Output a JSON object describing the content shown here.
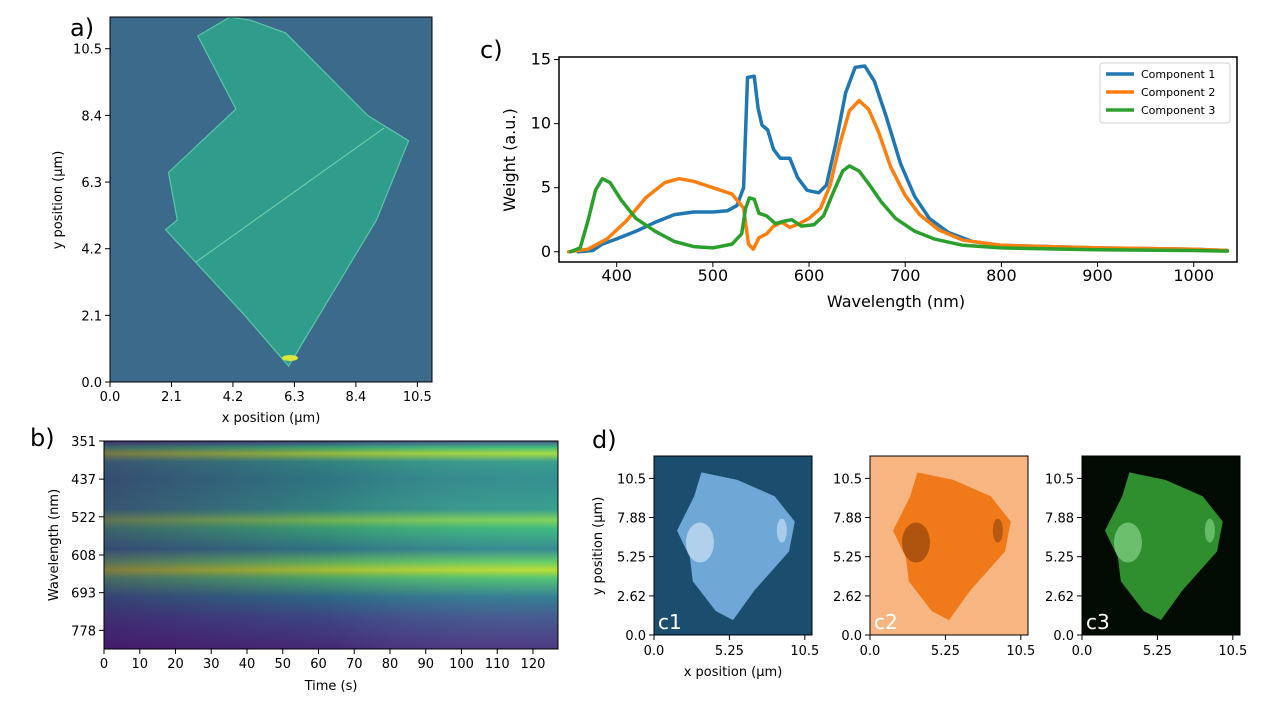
{
  "panels": {
    "a": "a)",
    "b": "b)",
    "c": "c)",
    "d": "d)"
  },
  "chart_data": [
    {
      "type": "heatmap",
      "panel": "a)",
      "xlabel": "x position (µm)",
      "ylabel": "y position (µm)",
      "x_ticks": [
        "0.0",
        "2.1",
        "4.2",
        "6.3",
        "8.4",
        "10.5"
      ],
      "y_ticks": [
        "0.0",
        "2.1",
        "4.2",
        "6.3",
        "8.4",
        "10.5"
      ],
      "xlim": [
        0,
        11
      ],
      "ylim": [
        0,
        11.5
      ],
      "colormap": "viridis",
      "flake_outline": [
        [
          3.0,
          10.9
        ],
        [
          4.1,
          11.5
        ],
        [
          4.8,
          11.4
        ],
        [
          6.0,
          11.0
        ],
        [
          8.8,
          8.4
        ],
        [
          10.2,
          7.6
        ],
        [
          9.1,
          5.1
        ],
        [
          6.1,
          0.5
        ],
        [
          4.6,
          2.1
        ],
        [
          1.9,
          4.8
        ],
        [
          2.3,
          5.1
        ],
        [
          2.0,
          6.6
        ],
        [
          4.3,
          8.6
        ],
        [
          3.0,
          10.9
        ]
      ]
    },
    {
      "type": "heatmap",
      "panel": "b)",
      "xlabel": "Time (s)",
      "ylabel": "Wavelength (nm)",
      "x_ticks": [
        "0",
        "10",
        "20",
        "30",
        "40",
        "50",
        "60",
        "70",
        "80",
        "90",
        "100",
        "110",
        "120"
      ],
      "y_ticks": [
        "351",
        "437",
        "522",
        "608",
        "693",
        "778"
      ],
      "xlim": [
        0,
        127
      ],
      "ylim": [
        351,
        820
      ],
      "colormap": "viridis",
      "bright_bands_nm": [
        385,
        520,
        648
      ]
    },
    {
      "type": "line",
      "panel": "c)",
      "xlabel": "Wavelength (nm)",
      "ylabel": "Weight (a.u.)",
      "xlim": [
        340,
        1045
      ],
      "ylim": [
        -0.8,
        15.2
      ],
      "x_ticks": [
        "400",
        "500",
        "600",
        "700",
        "800",
        "900",
        "1000"
      ],
      "y_ticks": [
        "0",
        "5",
        "10",
        "15"
      ],
      "legend_position": "top-right",
      "series": [
        {
          "name": "Component 1",
          "color": "#1f77b4",
          "points": [
            [
              360,
              0
            ],
            [
              375,
              0.1
            ],
            [
              385,
              0.6
            ],
            [
              400,
              1.0
            ],
            [
              420,
              1.6
            ],
            [
              440,
              2.3
            ],
            [
              460,
              2.9
            ],
            [
              480,
              3.1
            ],
            [
              500,
              3.1
            ],
            [
              515,
              3.2
            ],
            [
              525,
              3.6
            ],
            [
              532,
              5.0
            ],
            [
              536,
              13.6
            ],
            [
              543,
              13.7
            ],
            [
              547,
              11.2
            ],
            [
              551,
              9.9
            ],
            [
              557,
              9.5
            ],
            [
              563,
              8.0
            ],
            [
              570,
              7.3
            ],
            [
              580,
              7.3
            ],
            [
              588,
              5.8
            ],
            [
              598,
              4.8
            ],
            [
              610,
              4.6
            ],
            [
              618,
              5.2
            ],
            [
              628,
              8.5
            ],
            [
              638,
              12.4
            ],
            [
              648,
              14.4
            ],
            [
              658,
              14.5
            ],
            [
              668,
              13.3
            ],
            [
              680,
              10.6
            ],
            [
              695,
              6.9
            ],
            [
              710,
              4.3
            ],
            [
              725,
              2.6
            ],
            [
              745,
              1.5
            ],
            [
              770,
              0.8
            ],
            [
              800,
              0.5
            ],
            [
              900,
              0.3
            ],
            [
              1000,
              0.2
            ],
            [
              1035,
              0.1
            ]
          ]
        },
        {
          "name": "Component 2",
          "color": "#ff7f0e",
          "points": [
            [
              350,
              0
            ],
            [
              370,
              0.2
            ],
            [
              390,
              1.0
            ],
            [
              410,
              2.4
            ],
            [
              430,
              4.2
            ],
            [
              450,
              5.4
            ],
            [
              465,
              5.7
            ],
            [
              480,
              5.5
            ],
            [
              500,
              5.0
            ],
            [
              520,
              4.5
            ],
            [
              532,
              3.4
            ],
            [
              537,
              0.6
            ],
            [
              542,
              0.2
            ],
            [
              548,
              1.1
            ],
            [
              556,
              1.4
            ],
            [
              563,
              2.0
            ],
            [
              572,
              2.3
            ],
            [
              580,
              1.9
            ],
            [
              590,
              2.2
            ],
            [
              600,
              2.6
            ],
            [
              612,
              3.4
            ],
            [
              622,
              5.2
            ],
            [
              632,
              8.4
            ],
            [
              642,
              11.0
            ],
            [
              652,
              11.8
            ],
            [
              662,
              11.1
            ],
            [
              672,
              9.4
            ],
            [
              685,
              6.6
            ],
            [
              700,
              4.4
            ],
            [
              715,
              2.9
            ],
            [
              735,
              1.7
            ],
            [
              760,
              0.9
            ],
            [
              800,
              0.5
            ],
            [
              900,
              0.3
            ],
            [
              1000,
              0.2
            ],
            [
              1035,
              0.1
            ]
          ]
        },
        {
          "name": "Component 3",
          "color": "#2ca02c",
          "points": [
            [
              352,
              0
            ],
            [
              362,
              0.3
            ],
            [
              370,
              2.4
            ],
            [
              378,
              4.8
            ],
            [
              385,
              5.7
            ],
            [
              393,
              5.4
            ],
            [
              405,
              4.0
            ],
            [
              420,
              2.6
            ],
            [
              440,
              1.6
            ],
            [
              460,
              0.8
            ],
            [
              480,
              0.4
            ],
            [
              500,
              0.3
            ],
            [
              520,
              0.6
            ],
            [
              530,
              1.4
            ],
            [
              534,
              3.4
            ],
            [
              538,
              4.2
            ],
            [
              543,
              4.1
            ],
            [
              548,
              3.0
            ],
            [
              556,
              2.8
            ],
            [
              565,
              2.2
            ],
            [
              575,
              2.4
            ],
            [
              582,
              2.5
            ],
            [
              592,
              2.0
            ],
            [
              605,
              2.1
            ],
            [
              615,
              2.8
            ],
            [
              625,
              4.6
            ],
            [
              635,
              6.3
            ],
            [
              642,
              6.7
            ],
            [
              652,
              6.3
            ],
            [
              662,
              5.3
            ],
            [
              675,
              3.9
            ],
            [
              690,
              2.6
            ],
            [
              710,
              1.6
            ],
            [
              730,
              1.0
            ],
            [
              760,
              0.5
            ],
            [
              800,
              0.3
            ],
            [
              900,
              0.15
            ],
            [
              1000,
              0.1
            ],
            [
              1035,
              0.05
            ]
          ]
        }
      ]
    },
    {
      "type": "heatmap",
      "panel": "d)",
      "maps": [
        {
          "label": "c1",
          "background": "#1b4d6f",
          "flake": "#6fa7d6",
          "bright": "#e6f2ff"
        },
        {
          "label": "c2",
          "background": "#f7b582",
          "flake": "#f07a1a",
          "bright": "#7a3506"
        },
        {
          "label": "c3",
          "background": "#020c02",
          "flake": "#2f8f2f",
          "bright": "#9ee89e"
        }
      ],
      "xlabel": "x position (µm)",
      "ylabel": "y position (µm)",
      "x_ticks": [
        "0.0",
        "5.25",
        "10.5"
      ],
      "y_ticks": [
        "0.0",
        "2.62",
        "5.25",
        "7.88",
        "10.5"
      ],
      "xlim": [
        0,
        11
      ],
      "ylim": [
        0,
        12
      ]
    }
  ]
}
